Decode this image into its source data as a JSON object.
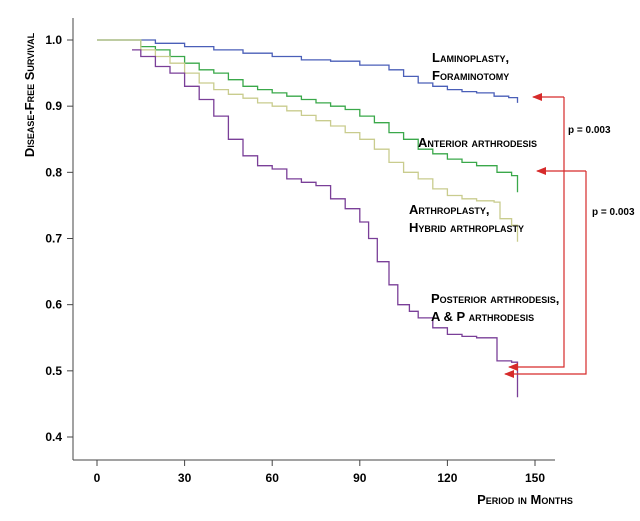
{
  "chart_data": {
    "type": "line",
    "xlabel": "Period in Months",
    "ylabel": "Disease-Free Survival",
    "xlim": [
      0,
      150
    ],
    "ylim": [
      0.4,
      1.0
    ],
    "x_ticks": [
      0,
      30,
      60,
      90,
      120,
      150
    ],
    "y_ticks": [
      0.4,
      0.5,
      0.6,
      0.7,
      0.8,
      0.9,
      1.0
    ],
    "grid": false,
    "series": [
      {
        "name": "Laminoplasty, Foraminotomy",
        "name_lines": [
          "Laminoplasty,",
          "Foraminotomy"
        ],
        "color": "#4a5fb8",
        "points": [
          [
            0,
            1.0
          ],
          [
            12,
            1.0
          ],
          [
            20,
            0.995
          ],
          [
            30,
            0.99
          ],
          [
            40,
            0.985
          ],
          [
            50,
            0.98
          ],
          [
            60,
            0.975
          ],
          [
            70,
            0.97
          ],
          [
            80,
            0.968
          ],
          [
            90,
            0.962
          ],
          [
            100,
            0.955
          ],
          [
            105,
            0.945
          ],
          [
            110,
            0.935
          ],
          [
            115,
            0.93
          ],
          [
            120,
            0.925
          ],
          [
            125,
            0.922
          ],
          [
            130,
            0.92
          ],
          [
            136,
            0.915
          ],
          [
            141,
            0.913
          ],
          [
            144,
            0.905
          ]
        ]
      },
      {
        "name": "Anterior arthrodesis",
        "name_lines": [
          "Anterior arthrodesis"
        ],
        "color": "#3aa84a",
        "points": [
          [
            0,
            1.0
          ],
          [
            12,
            1.0
          ],
          [
            15,
            0.99
          ],
          [
            20,
            0.985
          ],
          [
            25,
            0.975
          ],
          [
            30,
            0.965
          ],
          [
            35,
            0.955
          ],
          [
            40,
            0.95
          ],
          [
            45,
            0.94
          ],
          [
            50,
            0.93
          ],
          [
            55,
            0.925
          ],
          [
            60,
            0.92
          ],
          [
            65,
            0.915
          ],
          [
            70,
            0.91
          ],
          [
            75,
            0.905
          ],
          [
            80,
            0.9
          ],
          [
            85,
            0.895
          ],
          [
            90,
            0.885
          ],
          [
            95,
            0.875
          ],
          [
            100,
            0.86
          ],
          [
            105,
            0.85
          ],
          [
            110,
            0.835
          ],
          [
            115,
            0.828
          ],
          [
            120,
            0.82
          ],
          [
            125,
            0.815
          ],
          [
            130,
            0.81
          ],
          [
            137,
            0.8
          ],
          [
            142,
            0.795
          ],
          [
            144,
            0.77
          ]
        ]
      },
      {
        "name": "Arthroplasty, Hybrid arthroplasty",
        "name_lines": [
          "Arthroplasty,",
          "Hybrid arthroplasty"
        ],
        "color": "#c9cc8e",
        "points": [
          [
            0,
            1.0
          ],
          [
            12,
            1.0
          ],
          [
            15,
            0.985
          ],
          [
            20,
            0.975
          ],
          [
            25,
            0.965
          ],
          [
            30,
            0.95
          ],
          [
            35,
            0.935
          ],
          [
            40,
            0.925
          ],
          [
            45,
            0.918
          ],
          [
            50,
            0.912
          ],
          [
            55,
            0.905
          ],
          [
            60,
            0.9
          ],
          [
            65,
            0.893
          ],
          [
            70,
            0.886
          ],
          [
            75,
            0.878
          ],
          [
            80,
            0.87
          ],
          [
            85,
            0.86
          ],
          [
            90,
            0.85
          ],
          [
            95,
            0.835
          ],
          [
            100,
            0.815
          ],
          [
            105,
            0.8
          ],
          [
            110,
            0.79
          ],
          [
            115,
            0.775
          ],
          [
            120,
            0.765
          ],
          [
            125,
            0.76
          ],
          [
            130,
            0.757
          ],
          [
            136,
            0.755
          ],
          [
            138,
            0.73
          ],
          [
            142,
            0.72
          ],
          [
            144,
            0.695
          ]
        ]
      },
      {
        "name": "Posterior arthrodesis, A & P arthrodesis",
        "name_lines": [
          "Posterior arthrodesis,",
          "A & P arthrodesis"
        ],
        "color": "#7a3f98",
        "points": [
          [
            12,
            0.985
          ],
          [
            15,
            0.975
          ],
          [
            20,
            0.96
          ],
          [
            25,
            0.95
          ],
          [
            30,
            0.93
          ],
          [
            35,
            0.91
          ],
          [
            40,
            0.885
          ],
          [
            45,
            0.85
          ],
          [
            50,
            0.825
          ],
          [
            55,
            0.81
          ],
          [
            60,
            0.805
          ],
          [
            65,
            0.79
          ],
          [
            70,
            0.785
          ],
          [
            75,
            0.78
          ],
          [
            80,
            0.76
          ],
          [
            85,
            0.745
          ],
          [
            90,
            0.725
          ],
          [
            93,
            0.7
          ],
          [
            96,
            0.665
          ],
          [
            100,
            0.63
          ],
          [
            103,
            0.6
          ],
          [
            107,
            0.59
          ],
          [
            110,
            0.58
          ],
          [
            115,
            0.565
          ],
          [
            120,
            0.555
          ],
          [
            125,
            0.552
          ],
          [
            130,
            0.55
          ],
          [
            137,
            0.515
          ],
          [
            142,
            0.513
          ],
          [
            144,
            0.46
          ]
        ]
      }
    ],
    "annotations": [
      {
        "text": "p = 0.003",
        "compares": [
          "Laminoplasty, Foraminotomy",
          "Posterior arthrodesis, A & P arthrodesis"
        ]
      },
      {
        "text": "p = 0.003",
        "compares": [
          "Anterior arthrodesis",
          "Posterior arthrodesis, A & P arthrodesis"
        ]
      }
    ]
  }
}
